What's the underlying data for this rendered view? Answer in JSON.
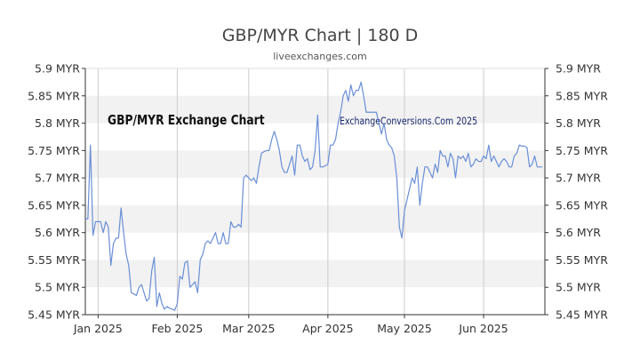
{
  "chart_data": {
    "type": "line",
    "title": "GBP/MYR Chart | 180 D",
    "subtitle": "liveexchanges.com",
    "watermark_left": "GBP/MYR Exchange Chart",
    "watermark_right": "ExchangeConversions.Com 2025",
    "xlabel": "",
    "ylabel": "",
    "ylim": [
      5.45,
      5.9
    ],
    "x_range": [
      "2024-12-27",
      "2025-06-25"
    ],
    "y_ticks": [
      {
        "value": 5.45,
        "label": "5.45 MYR"
      },
      {
        "value": 5.5,
        "label": "5.5 MYR"
      },
      {
        "value": 5.55,
        "label": "5.55 MYR"
      },
      {
        "value": 5.6,
        "label": "5.6 MYR"
      },
      {
        "value": 5.65,
        "label": "5.65 MYR"
      },
      {
        "value": 5.7,
        "label": "5.7 MYR"
      },
      {
        "value": 5.75,
        "label": "5.75 MYR"
      },
      {
        "value": 5.8,
        "label": "5.8 MYR"
      },
      {
        "value": 5.85,
        "label": "5.85 MYR"
      },
      {
        "value": 5.9,
        "label": "5.9 MYR"
      }
    ],
    "x_ticks": [
      {
        "date": "2025-01-01",
        "label": "Jan 2025"
      },
      {
        "date": "2025-02-01",
        "label": "Feb 2025"
      },
      {
        "date": "2025-03-01",
        "label": "Mar 2025"
      },
      {
        "date": "2025-04-01",
        "label": "Apr 2025"
      },
      {
        "date": "2025-05-01",
        "label": "May 2025"
      },
      {
        "date": "2025-06-01",
        "label": "Jun 2025"
      }
    ],
    "grid": {
      "horizontal_bands": true,
      "vertical_lines": true
    },
    "colors": {
      "line": "#6a8fd6",
      "band": "#f2f2f2",
      "grid": "#cccccc",
      "axis": "#333333"
    },
    "series": [
      {
        "values": [
          [
            "2024-12-27",
            5.625
          ],
          [
            "2024-12-28",
            5.625
          ],
          [
            "2024-12-29",
            5.76
          ],
          [
            "2024-12-30",
            5.595
          ],
          [
            "2024-12-31",
            5.62
          ],
          [
            "2025-01-02",
            5.62
          ],
          [
            "2025-01-03",
            5.6
          ],
          [
            "2025-01-04",
            5.62
          ],
          [
            "2025-01-05",
            5.61
          ],
          [
            "2025-01-06",
            5.54
          ],
          [
            "2025-01-07",
            5.58
          ],
          [
            "2025-01-08",
            5.59
          ],
          [
            "2025-01-09",
            5.59
          ],
          [
            "2025-01-10",
            5.645
          ],
          [
            "2025-01-11",
            5.6
          ],
          [
            "2025-01-12",
            5.56
          ],
          [
            "2025-01-13",
            5.54
          ],
          [
            "2025-01-14",
            5.49
          ],
          [
            "2025-01-15",
            5.488
          ],
          [
            "2025-01-16",
            5.485
          ],
          [
            "2025-01-17",
            5.5
          ],
          [
            "2025-01-18",
            5.505
          ],
          [
            "2025-01-19",
            5.49
          ],
          [
            "2025-01-20",
            5.475
          ],
          [
            "2025-01-21",
            5.48
          ],
          [
            "2025-01-22",
            5.53
          ],
          [
            "2025-01-23",
            5.555
          ],
          [
            "2025-01-24",
            5.465
          ],
          [
            "2025-01-25",
            5.49
          ],
          [
            "2025-01-26",
            5.47
          ],
          [
            "2025-01-27",
            5.46
          ],
          [
            "2025-01-28",
            5.465
          ],
          [
            "2025-01-29",
            5.462
          ],
          [
            "2025-01-30",
            5.46
          ],
          [
            "2025-01-31",
            5.458
          ],
          [
            "2025-02-01",
            5.47
          ],
          [
            "2025-02-02",
            5.52
          ],
          [
            "2025-02-03",
            5.515
          ],
          [
            "2025-02-04",
            5.545
          ],
          [
            "2025-02-05",
            5.548
          ],
          [
            "2025-02-06",
            5.5
          ],
          [
            "2025-02-07",
            5.505
          ],
          [
            "2025-02-08",
            5.51
          ],
          [
            "2025-02-09",
            5.49
          ],
          [
            "2025-02-10",
            5.55
          ],
          [
            "2025-02-11",
            5.56
          ],
          [
            "2025-02-12",
            5.58
          ],
          [
            "2025-02-13",
            5.585
          ],
          [
            "2025-02-14",
            5.58
          ],
          [
            "2025-02-15",
            5.59
          ],
          [
            "2025-02-16",
            5.6
          ],
          [
            "2025-02-17",
            5.58
          ],
          [
            "2025-02-18",
            5.58
          ],
          [
            "2025-02-19",
            5.6
          ],
          [
            "2025-02-20",
            5.58
          ],
          [
            "2025-02-21",
            5.58
          ],
          [
            "2025-02-22",
            5.62
          ],
          [
            "2025-02-23",
            5.61
          ],
          [
            "2025-02-24",
            5.61
          ],
          [
            "2025-02-25",
            5.615
          ],
          [
            "2025-02-26",
            5.61
          ],
          [
            "2025-02-27",
            5.7
          ],
          [
            "2025-02-28",
            5.705
          ],
          [
            "2025-03-01",
            5.7
          ],
          [
            "2025-03-02",
            5.695
          ],
          [
            "2025-03-03",
            5.7
          ],
          [
            "2025-03-04",
            5.69
          ],
          [
            "2025-03-05",
            5.72
          ],
          [
            "2025-03-06",
            5.745
          ],
          [
            "2025-03-07",
            5.748
          ],
          [
            "2025-03-08",
            5.75
          ],
          [
            "2025-03-09",
            5.75
          ],
          [
            "2025-03-10",
            5.77
          ],
          [
            "2025-03-11",
            5.785
          ],
          [
            "2025-03-12",
            5.77
          ],
          [
            "2025-03-13",
            5.75
          ],
          [
            "2025-03-14",
            5.72
          ],
          [
            "2025-03-15",
            5.71
          ],
          [
            "2025-03-16",
            5.71
          ],
          [
            "2025-03-17",
            5.725
          ],
          [
            "2025-03-18",
            5.74
          ],
          [
            "2025-03-19",
            5.705
          ],
          [
            "2025-03-20",
            5.76
          ],
          [
            "2025-03-21",
            5.76
          ],
          [
            "2025-03-22",
            5.74
          ],
          [
            "2025-03-23",
            5.73
          ],
          [
            "2025-03-24",
            5.735
          ],
          [
            "2025-03-25",
            5.715
          ],
          [
            "2025-03-26",
            5.72
          ],
          [
            "2025-03-27",
            5.75
          ],
          [
            "2025-03-28",
            5.815
          ],
          [
            "2025-03-29",
            5.72
          ],
          [
            "2025-03-30",
            5.72
          ],
          [
            "2025-03-31",
            5.722
          ],
          [
            "2025-04-01",
            5.725
          ],
          [
            "2025-04-02",
            5.76
          ],
          [
            "2025-04-03",
            5.76
          ],
          [
            "2025-04-04",
            5.77
          ],
          [
            "2025-04-05",
            5.8
          ],
          [
            "2025-04-06",
            5.82
          ],
          [
            "2025-04-07",
            5.85
          ],
          [
            "2025-04-08",
            5.86
          ],
          [
            "2025-04-09",
            5.84
          ],
          [
            "2025-04-10",
            5.87
          ],
          [
            "2025-04-11",
            5.85
          ],
          [
            "2025-04-12",
            5.86
          ],
          [
            "2025-04-13",
            5.86
          ],
          [
            "2025-04-14",
            5.875
          ],
          [
            "2025-04-15",
            5.85
          ],
          [
            "2025-04-16",
            5.82
          ],
          [
            "2025-04-17",
            5.82
          ],
          [
            "2025-04-18",
            5.82
          ],
          [
            "2025-04-19",
            5.82
          ],
          [
            "2025-04-20",
            5.82
          ],
          [
            "2025-04-21",
            5.8
          ],
          [
            "2025-04-22",
            5.78
          ],
          [
            "2025-04-23",
            5.8
          ],
          [
            "2025-04-24",
            5.77
          ],
          [
            "2025-04-25",
            5.76
          ],
          [
            "2025-04-26",
            5.755
          ],
          [
            "2025-04-27",
            5.74
          ],
          [
            "2025-04-28",
            5.7
          ],
          [
            "2025-04-29",
            5.61
          ],
          [
            "2025-04-30",
            5.59
          ],
          [
            "2025-05-01",
            5.64
          ],
          [
            "2025-05-02",
            5.66
          ],
          [
            "2025-05-03",
            5.68
          ],
          [
            "2025-05-04",
            5.7
          ],
          [
            "2025-05-05",
            5.69
          ],
          [
            "2025-05-06",
            5.72
          ],
          [
            "2025-05-07",
            5.65
          ],
          [
            "2025-05-08",
            5.69
          ],
          [
            "2025-05-09",
            5.72
          ],
          [
            "2025-05-10",
            5.72
          ],
          [
            "2025-05-11",
            5.71
          ],
          [
            "2025-05-12",
            5.7
          ],
          [
            "2025-05-13",
            5.725
          ],
          [
            "2025-05-14",
            5.71
          ],
          [
            "2025-05-15",
            5.75
          ],
          [
            "2025-05-16",
            5.74
          ],
          [
            "2025-05-17",
            5.74
          ],
          [
            "2025-05-18",
            5.72
          ],
          [
            "2025-05-19",
            5.745
          ],
          [
            "2025-05-20",
            5.735
          ],
          [
            "2025-05-21",
            5.7
          ],
          [
            "2025-05-22",
            5.74
          ],
          [
            "2025-05-23",
            5.735
          ],
          [
            "2025-05-24",
            5.74
          ],
          [
            "2025-05-25",
            5.73
          ],
          [
            "2025-05-26",
            5.745
          ],
          [
            "2025-05-27",
            5.72
          ],
          [
            "2025-05-28",
            5.725
          ],
          [
            "2025-05-29",
            5.735
          ],
          [
            "2025-05-30",
            5.73
          ],
          [
            "2025-05-31",
            5.73
          ],
          [
            "2025-06-01",
            5.74
          ],
          [
            "2025-06-02",
            5.735
          ],
          [
            "2025-06-03",
            5.76
          ],
          [
            "2025-06-04",
            5.73
          ],
          [
            "2025-06-05",
            5.74
          ],
          [
            "2025-06-06",
            5.73
          ],
          [
            "2025-06-07",
            5.72
          ],
          [
            "2025-06-08",
            5.73
          ],
          [
            "2025-06-09",
            5.735
          ],
          [
            "2025-06-10",
            5.73
          ],
          [
            "2025-06-11",
            5.72
          ],
          [
            "2025-06-12",
            5.72
          ],
          [
            "2025-06-13",
            5.74
          ],
          [
            "2025-06-14",
            5.745
          ],
          [
            "2025-06-15",
            5.76
          ],
          [
            "2025-06-16",
            5.758
          ],
          [
            "2025-06-17",
            5.758
          ],
          [
            "2025-06-18",
            5.755
          ],
          [
            "2025-06-19",
            5.72
          ],
          [
            "2025-06-20",
            5.725
          ],
          [
            "2025-06-21",
            5.74
          ],
          [
            "2025-06-22",
            5.72
          ],
          [
            "2025-06-23",
            5.72
          ],
          [
            "2025-06-24",
            5.72
          ]
        ]
      }
    ]
  }
}
